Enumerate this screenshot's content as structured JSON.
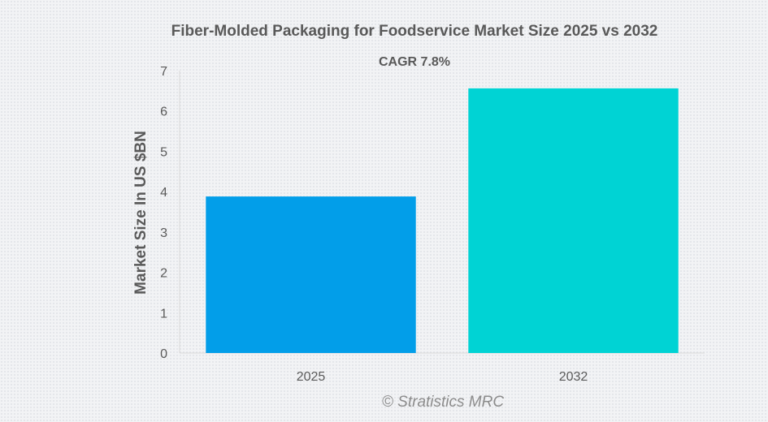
{
  "chart_data": {
    "type": "bar",
    "title": "Fiber-Molded Packaging for Foodservice Market Size 2025 vs 2032",
    "subtitle": "CAGR 7.8%",
    "xlabel": "",
    "ylabel": "Market Size In US $BN",
    "categories": [
      "2025",
      "2032"
    ],
    "values": [
      3.88,
      6.56
    ],
    "colors": [
      "#029ee9",
      "#00d3d4"
    ],
    "ylim": [
      0,
      7
    ],
    "yticks": [
      0,
      1,
      2,
      3,
      4,
      5,
      6,
      7
    ],
    "grid": false,
    "legend": "none",
    "credit": "© Stratistics MRC"
  }
}
